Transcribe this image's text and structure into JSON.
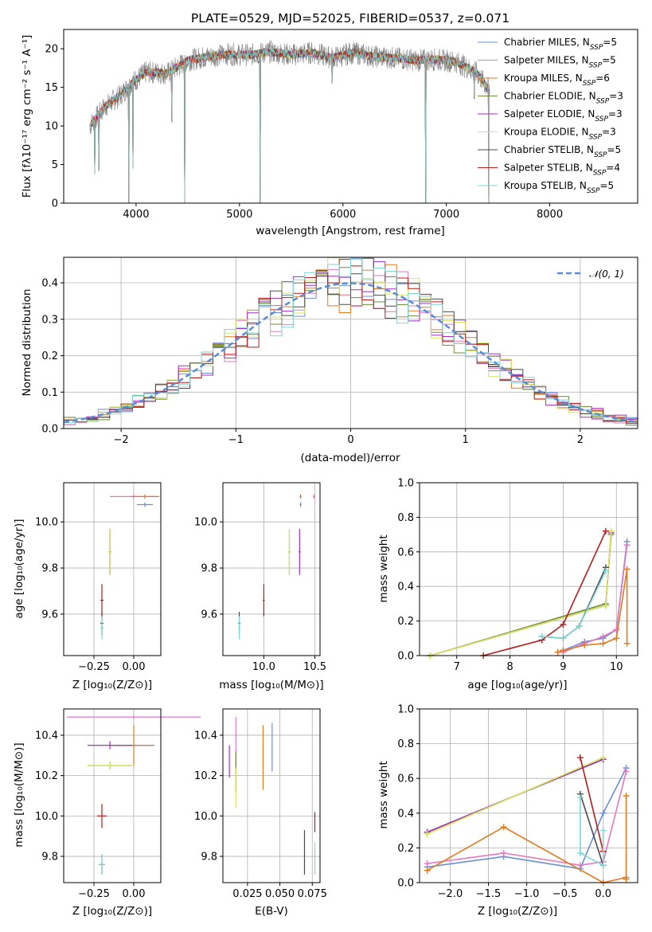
{
  "colors": {
    "Chabrier MILES": "#6a8fd8",
    "Salpeter MILES": "#e377c2",
    "Kroupa MILES": "#e07b20",
    "Chabrier ELODIE": "#6b8e3a",
    "Salpeter ELODIE": "#9e2fbf",
    "Kroupa ELODIE": "#d8e65a",
    "Chabrier STELIB": "#4a4a4a",
    "Salpeter STELIB": "#b51c1c",
    "Kroupa STELIB": "#7fd6d6",
    "gaussian": "#5b8bd5",
    "data": "#808080"
  },
  "chart_data": [
    {
      "id": "spectrum",
      "type": "line",
      "title": "PLATE=0529, MJD=52025, FIBERID=0537, z=0.071",
      "xlabel": "wavelength [Angstrom, rest frame]",
      "ylabel": "Flux [fλ10⁻¹⁷ erg cm⁻² s⁻¹ A⁻¹]",
      "xlim": [
        3300,
        8850
      ],
      "ylim": [
        0,
        22.5
      ],
      "xticks": [
        4000,
        5000,
        6000,
        7000,
        8000
      ],
      "yticks": [
        0,
        5,
        10,
        15,
        20
      ],
      "legend_position": "right",
      "legend": [
        {
          "name": "Chabrier MILES",
          "nssp": "5"
        },
        {
          "name": "Salpeter MILES",
          "nssp": "5"
        },
        {
          "name": "Kroupa MILES",
          "nssp": "6"
        },
        {
          "name": "Chabrier ELODIE",
          "nssp": "3"
        },
        {
          "name": "Salpeter ELODIE",
          "nssp": "3"
        },
        {
          "name": "Kroupa ELODIE",
          "nssp": "3"
        },
        {
          "name": "Chabrier STELIB",
          "nssp": "5"
        },
        {
          "name": "Salpeter STELIB",
          "nssp": "4"
        },
        {
          "name": "Kroupa STELIB",
          "nssp": "5"
        }
      ],
      "continuum": {
        "x": [
          3550,
          3700,
          3850,
          3950,
          4100,
          4300,
          4500,
          4700,
          4900,
          5100,
          5300,
          5500,
          5700,
          5900,
          6100,
          6300,
          6500,
          6700,
          6900,
          7100,
          7300,
          7420
        ],
        "y": [
          10.0,
          12.5,
          14.0,
          15.5,
          17.0,
          16.8,
          18.5,
          19.0,
          19.3,
          19.2,
          19.6,
          19.2,
          19.5,
          18.8,
          19.5,
          19.0,
          18.8,
          18.5,
          18.6,
          18.3,
          16.8,
          14.5
        ]
      },
      "drops": [
        {
          "x": 3930,
          "y": 0
        },
        {
          "x": 4470,
          "y": 0
        },
        {
          "x": 5200,
          "y": 0
        },
        {
          "x": 6800,
          "y": 0
        },
        {
          "x": 7410,
          "y": 0
        },
        {
          "x": 3970,
          "y": 4.5
        },
        {
          "x": 4345,
          "y": 10.5
        },
        {
          "x": 5895,
          "y": 15.5
        },
        {
          "x": 7270,
          "y": 13.5
        },
        {
          "x": 3600,
          "y": 3.8
        },
        {
          "x": 3640,
          "y": 4.2
        }
      ]
    },
    {
      "id": "residuals",
      "type": "line",
      "xlabel": "(data-model)/error",
      "ylabel": "Normed distribution",
      "xlim": [
        -2.5,
        2.5
      ],
      "ylim": [
        0,
        0.47
      ],
      "xticks": [
        -2,
        -1,
        0,
        1,
        2
      ],
      "yticks": [
        0.0,
        0.1,
        0.2,
        0.3,
        0.4
      ],
      "grid": true,
      "legend_position": "top-right",
      "legend_label": "𝒩(0, 1)",
      "bin_width": 0.1,
      "histogram_x_start": -2.5,
      "histogram_x_end": 2.5
    },
    {
      "id": "age-z",
      "type": "scatter",
      "xlabel": "Z [log₁₀(Z/Z⊙)]",
      "ylabel": "age  [log₁₀(age/yr)]",
      "xlim": [
        -0.44,
        0.17
      ],
      "ylim": [
        9.42,
        10.17
      ],
      "xticks": [
        -0.25,
        0.0
      ],
      "yticks": [
        9.6,
        9.8,
        10.0
      ],
      "grid": true,
      "points": [
        {
          "model": "Chabrier MILES",
          "x": 0.07,
          "y": 10.075,
          "xerr": 0.05,
          "yerr": 0.01
        },
        {
          "model": "Salpeter MILES",
          "x": 0.0,
          "y": 10.11,
          "xerr": 0.15,
          "yerr": 0.01
        },
        {
          "model": "Kroupa MILES",
          "x": 0.07,
          "y": 10.11,
          "xerr": 0.09,
          "yerr": 0.01
        },
        {
          "model": "Chabrier ELODIE",
          "x": -0.15,
          "y": 9.87,
          "xerr": 0.01,
          "yerr": 0.1
        },
        {
          "model": "Salpeter ELODIE",
          "x": -0.15,
          "y": 9.87,
          "xerr": 0.01,
          "yerr": 0.1
        },
        {
          "model": "Kroupa ELODIE",
          "x": -0.15,
          "y": 9.87,
          "xerr": 0.01,
          "yerr": 0.1
        },
        {
          "model": "Chabrier STELIB",
          "x": -0.2,
          "y": 9.56,
          "xerr": 0.01,
          "yerr": 0.05
        },
        {
          "model": "Salpeter STELIB",
          "x": -0.2,
          "y": 9.66,
          "xerr": 0.01,
          "yerr": 0.07
        },
        {
          "model": "Kroupa STELIB",
          "x": -0.2,
          "y": 9.54,
          "xerr": 0.01,
          "yerr": 0.05
        }
      ]
    },
    {
      "id": "age-mass",
      "type": "scatter",
      "xlabel": "mass [log₁₀(M/M⊙)]",
      "xlim": [
        9.6,
        10.55
      ],
      "ylim": [
        9.42,
        10.17
      ],
      "xticks": [
        10.0,
        10.5
      ],
      "yticks": [
        9.6,
        9.8,
        10.0
      ],
      "grid": true,
      "points": [
        {
          "model": "Chabrier MILES",
          "x": 10.36,
          "y": 10.075,
          "xerr": 0.01,
          "yerr": 0.01
        },
        {
          "model": "Salpeter MILES",
          "x": 10.49,
          "y": 10.11,
          "xerr": 0.01,
          "yerr": 0.01
        },
        {
          "model": "Kroupa MILES",
          "x": 10.36,
          "y": 10.11,
          "xerr": 0.01,
          "yerr": 0.01
        },
        {
          "model": "Chabrier ELODIE",
          "x": 10.25,
          "y": 9.87,
          "xerr": 0.01,
          "yerr": 0.1
        },
        {
          "model": "Salpeter ELODIE",
          "x": 10.35,
          "y": 9.87,
          "xerr": 0.01,
          "yerr": 0.1
        },
        {
          "model": "Kroupa ELODIE",
          "x": 10.25,
          "y": 9.87,
          "xerr": 0.01,
          "yerr": 0.1
        },
        {
          "model": "Chabrier STELIB",
          "x": 9.76,
          "y": 9.56,
          "xerr": 0.01,
          "yerr": 0.05
        },
        {
          "model": "Salpeter STELIB",
          "x": 10.0,
          "y": 9.66,
          "xerr": 0.01,
          "yerr": 0.07
        },
        {
          "model": "Kroupa STELIB",
          "x": 9.76,
          "y": 9.54,
          "xerr": 0.01,
          "yerr": 0.05
        }
      ]
    },
    {
      "id": "weight-age",
      "type": "line",
      "xlabel": "age  [log₁₀(age/yr)]",
      "ylabel": "mass weight",
      "xlim": [
        6.3,
        10.4
      ],
      "ylim": [
        0,
        1
      ],
      "xticks": [
        7,
        8,
        9,
        10
      ],
      "yticks": [
        0.0,
        0.2,
        0.4,
        0.6,
        0.8,
        1.0
      ],
      "grid": true,
      "series": [
        {
          "model": "Chabrier MILES",
          "x": [
            8.9,
            9.0,
            9.4,
            9.75,
            10.0,
            10.2
          ],
          "y": [
            0.02,
            0.03,
            0.08,
            0.1,
            0.15,
            0.66
          ]
        },
        {
          "model": "Salpeter MILES",
          "x": [
            9.0,
            9.4,
            9.75,
            10.0,
            10.2
          ],
          "y": [
            0.02,
            0.07,
            0.11,
            0.15,
            0.64
          ]
        },
        {
          "model": "Kroupa MILES",
          "x": [
            8.9,
            9.0,
            9.4,
            9.75,
            10.0,
            10.2,
            10.2
          ],
          "y": [
            0.02,
            0.03,
            0.06,
            0.07,
            0.1,
            0.5,
            0.07
          ]
        },
        {
          "model": "Chabrier ELODIE",
          "x": [
            6.5,
            9.8,
            9.9
          ],
          "y": [
            0.0,
            0.3,
            0.7
          ]
        },
        {
          "model": "Salpeter ELODIE",
          "x": [
            6.5,
            9.8,
            9.9
          ],
          "y": [
            0.0,
            0.29,
            0.71
          ]
        },
        {
          "model": "Kroupa ELODIE",
          "x": [
            6.5,
            9.8,
            9.9
          ],
          "y": [
            0.0,
            0.29,
            0.72
          ]
        },
        {
          "model": "Chabrier STELIB",
          "x": [
            8.6,
            9.0,
            9.3,
            9.8
          ],
          "y": [
            0.11,
            0.1,
            0.17,
            0.51
          ]
        },
        {
          "model": "Salpeter STELIB",
          "x": [
            7.5,
            8.6,
            9.0,
            9.8
          ],
          "y": [
            0.0,
            0.09,
            0.18,
            0.72
          ]
        },
        {
          "model": "Kroupa STELIB",
          "x": [
            8.6,
            9.0,
            9.3,
            9.8
          ],
          "y": [
            0.11,
            0.1,
            0.17,
            0.49
          ]
        }
      ]
    },
    {
      "id": "mass-z",
      "type": "scatter",
      "xlabel": "Z [log₁₀(Z/Z⊙)]",
      "ylabel": "mass [log₁₀(M/M⊙)]",
      "xlim": [
        -0.44,
        0.17
      ],
      "ylim": [
        9.67,
        10.53
      ],
      "xticks": [
        -0.25,
        0.0
      ],
      "yticks": [
        9.8,
        10.0,
        10.2,
        10.4
      ],
      "grid": true,
      "points": [
        {
          "model": "Chabrier MILES",
          "x": 0.0,
          "y": 10.35,
          "xerr": 0.13,
          "yerr": 0.01
        },
        {
          "model": "Salpeter MILES",
          "x": 0.0,
          "y": 10.49,
          "xerr": 0.42,
          "yerr": 0.01
        },
        {
          "model": "Kroupa MILES",
          "x": 0.0,
          "y": 10.35,
          "xerr": 0.13,
          "yerr": 0.1
        },
        {
          "model": "Chabrier ELODIE",
          "x": -0.15,
          "y": 10.25,
          "xerr": 0.14,
          "yerr": 0.02
        },
        {
          "model": "Salpeter ELODIE",
          "x": -0.15,
          "y": 10.35,
          "xerr": 0.14,
          "yerr": 0.02
        },
        {
          "model": "Kroupa ELODIE",
          "x": -0.15,
          "y": 10.25,
          "xerr": 0.14,
          "yerr": 0.02
        },
        {
          "model": "Chabrier STELIB",
          "x": -0.2,
          "y": 9.76,
          "xerr": 0.02,
          "yerr": 0.05
        },
        {
          "model": "Salpeter STELIB",
          "x": -0.2,
          "y": 10.0,
          "xerr": 0.03,
          "yerr": 0.06
        },
        {
          "model": "Kroupa STELIB",
          "x": -0.2,
          "y": 9.76,
          "xerr": 0.02,
          "yerr": 0.05
        }
      ]
    },
    {
      "id": "mass-ebv",
      "type": "scatter",
      "xlabel": "E(B-V)",
      "xlim": [
        0.006,
        0.081
      ],
      "ylim": [
        9.67,
        10.53
      ],
      "xticks": [
        0.025,
        0.05,
        0.075
      ],
      "xticklabels": [
        "0.025",
        "0.050",
        "0.075"
      ],
      "yticks": [
        9.8,
        10.0,
        10.2,
        10.4
      ],
      "grid": true,
      "points": [
        {
          "model": "Chabrier MILES",
          "x": 0.044,
          "y": 10.34,
          "yerr": 0.12
        },
        {
          "model": "Salpeter MILES",
          "x": 0.016,
          "y": 10.34,
          "yerr": 0.15
        },
        {
          "model": "Kroupa MILES",
          "x": 0.037,
          "y": 10.29,
          "yerr": 0.16
        },
        {
          "model": "Chabrier ELODIE",
          "x": 0.016,
          "y": 10.22,
          "yerr": 0.1
        },
        {
          "model": "Salpeter ELODIE",
          "x": 0.011,
          "y": 10.27,
          "yerr": 0.08
        },
        {
          "model": "Kroupa ELODIE",
          "x": 0.016,
          "y": 10.14,
          "yerr": 0.1
        },
        {
          "model": "Chabrier STELIB",
          "x": 0.069,
          "y": 9.82,
          "yerr": 0.11
        },
        {
          "model": "Salpeter STELIB",
          "x": 0.077,
          "y": 9.97,
          "yerr": 0.05
        },
        {
          "model": "Kroupa STELIB",
          "x": 0.077,
          "y": 9.79,
          "yerr": 0.08
        }
      ]
    },
    {
      "id": "weight-z",
      "type": "line",
      "xlabel": "Z [log₁₀(Z/Z⊙)]",
      "ylabel": "mass weight",
      "xlim": [
        -2.4,
        0.45
      ],
      "ylim": [
        0,
        1
      ],
      "xticks": [
        -2.0,
        -1.5,
        -1.0,
        -0.5,
        0.0
      ],
      "yticks": [
        0.0,
        0.2,
        0.4,
        0.6,
        0.8,
        1.0
      ],
      "grid": true,
      "series": [
        {
          "model": "Chabrier MILES",
          "x": [
            -2.3,
            -1.3,
            -0.3,
            0.0,
            0.3
          ],
          "y": [
            0.09,
            0.15,
            0.08,
            0.4,
            0.66
          ]
        },
        {
          "model": "Salpeter MILES",
          "x": [
            -2.3,
            -1.3,
            -0.3,
            0.0,
            0.3
          ],
          "y": [
            0.11,
            0.17,
            0.1,
            0.12,
            0.64
          ]
        },
        {
          "model": "Kroupa MILES",
          "x": [
            -2.3,
            -1.3,
            0.0,
            0.3,
            0.3,
            0.3
          ],
          "y": [
            0.07,
            0.32,
            0.0,
            0.03,
            0.5,
            0.02
          ]
        },
        {
          "model": "Chabrier ELODIE",
          "x": [
            -2.3,
            0.0
          ],
          "y": [
            0.29,
            0.71
          ]
        },
        {
          "model": "Salpeter ELODIE",
          "x": [
            -2.3,
            0.0
          ],
          "y": [
            0.29,
            0.71
          ]
        },
        {
          "model": "Kroupa ELODIE",
          "x": [
            -2.3,
            0.0
          ],
          "y": [
            0.28,
            0.72
          ]
        },
        {
          "model": "Chabrier STELIB",
          "x": [
            -0.3,
            0.0
          ],
          "y": [
            0.51,
            0.1
          ]
        },
        {
          "model": "Salpeter STELIB",
          "x": [
            -0.3,
            0.0
          ],
          "y": [
            0.72,
            0.18
          ]
        },
        {
          "model": "Kroupa STELIB",
          "x": [
            -0.3,
            -0.3,
            0.0,
            0.0
          ],
          "y": [
            0.49,
            0.17,
            0.1,
            0.3
          ]
        }
      ]
    }
  ]
}
